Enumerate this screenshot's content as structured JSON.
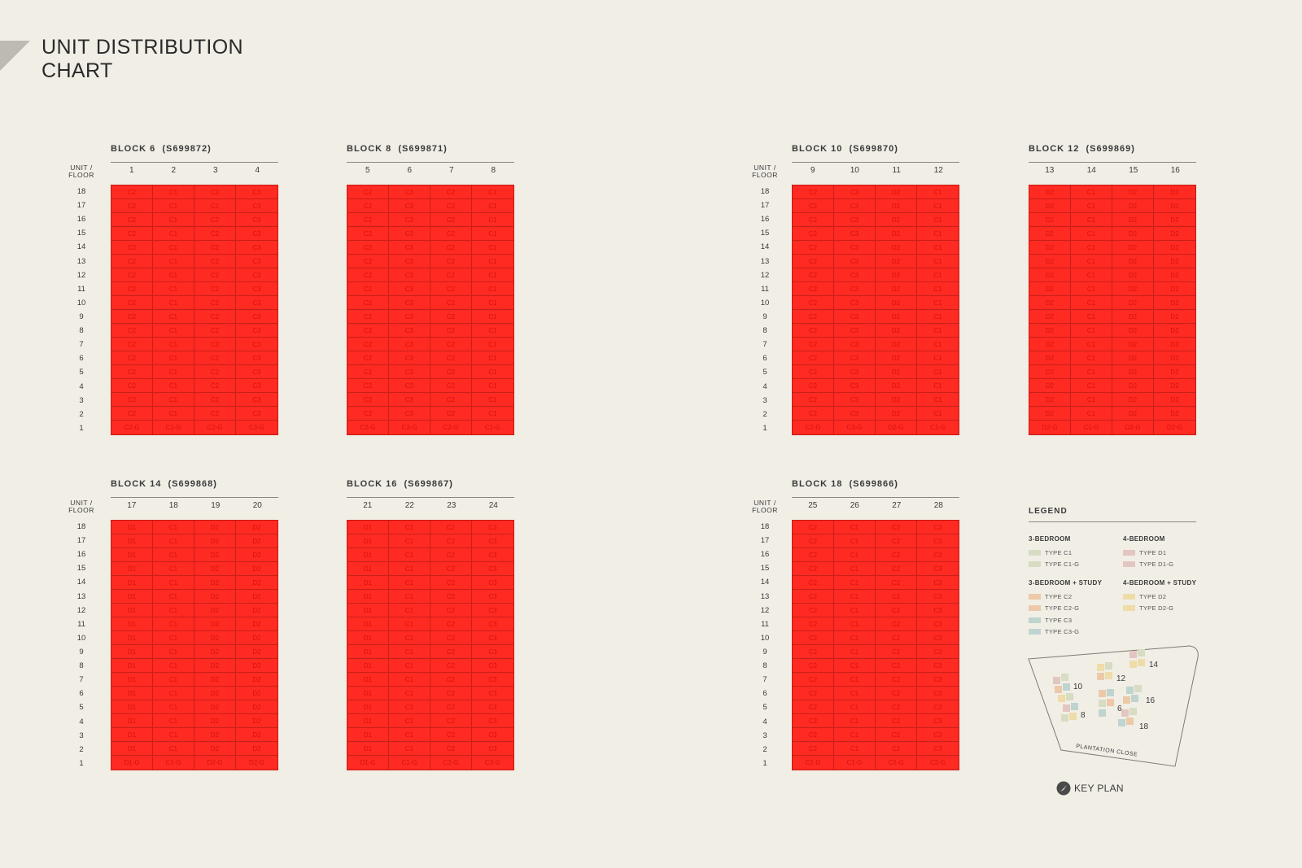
{
  "title": "UNIT DISTRIBUTION\nCHART",
  "floor_label": "UNIT /\nFLOOR",
  "floors": [
    "18",
    "17",
    "16",
    "15",
    "14",
    "13",
    "12",
    "11",
    "10",
    "9",
    "8",
    "7",
    "6",
    "5",
    "4",
    "3",
    "2",
    "1"
  ],
  "blocks": [
    {
      "title": "BLOCK 6  (S699872)",
      "units": [
        "1",
        "2",
        "3",
        "4"
      ],
      "types": [
        "C2",
        "C1",
        "C2",
        "C3"
      ],
      "ground": [
        "C2-G",
        "C1-G",
        "C2-G",
        "C3-G"
      ]
    },
    {
      "title": "BLOCK 8  (S699871)",
      "units": [
        "5",
        "6",
        "7",
        "8"
      ],
      "types": [
        "C2",
        "C3",
        "C2",
        "C1"
      ],
      "ground": [
        "C2-G",
        "C3-G",
        "C2-G",
        "C1-G"
      ]
    },
    {
      "title": "BLOCK 10  (S699870)",
      "units": [
        "9",
        "10",
        "11",
        "12"
      ],
      "types": [
        "C2",
        "C3",
        "D2",
        "C1"
      ],
      "ground": [
        "C2-G",
        "C3-G",
        "D2-G",
        "C1-G"
      ]
    },
    {
      "title": "BLOCK 12  (S699869)",
      "units": [
        "13",
        "14",
        "15",
        "16"
      ],
      "types": [
        "D2",
        "C1",
        "D2",
        "D2"
      ],
      "ground": [
        "D2-G",
        "C1-G",
        "D2-G",
        "D2-G"
      ]
    },
    {
      "title": "BLOCK 14  (S699868)",
      "units": [
        "17",
        "18",
        "19",
        "20"
      ],
      "types": [
        "D1",
        "C1",
        "D2",
        "D2"
      ],
      "ground": [
        "D1-G",
        "C1-G",
        "D2-G",
        "D2-G"
      ]
    },
    {
      "title": "BLOCK 16  (S699867)",
      "units": [
        "21",
        "22",
        "23",
        "24"
      ],
      "types": [
        "D1",
        "C1",
        "C2",
        "C3"
      ],
      "ground": [
        "D1-G",
        "C1-G",
        "C2-G",
        "C3-G"
      ]
    },
    {
      "title": "BLOCK 18  (S699866)",
      "units": [
        "25",
        "26",
        "27",
        "28"
      ],
      "types": [
        "C2",
        "C1",
        "C2",
        "C3"
      ],
      "ground": [
        "C2-G",
        "C1-G",
        "C2-G",
        "C3-G"
      ]
    }
  ],
  "legend": {
    "title": "LEGEND",
    "groups": [
      {
        "title": "3-BEDROOM",
        "items": [
          {
            "label": "TYPE C1",
            "color": "#d7dcc2"
          },
          {
            "label": "TYPE C1-G",
            "color": "#d7dcc2"
          }
        ]
      },
      {
        "title": "3-BEDROOM + STUDY",
        "items": [
          {
            "label": "TYPE C2",
            "color": "#ecc9a9"
          },
          {
            "label": "TYPE C2-G",
            "color": "#ecc9a9"
          },
          {
            "label": "TYPE C3",
            "color": "#bfd4cf"
          },
          {
            "label": "TYPE C3-G",
            "color": "#bfd4cf"
          }
        ]
      },
      {
        "title": "4-BEDROOM",
        "items": [
          {
            "label": "TYPE D1",
            "color": "#e2c6c2"
          },
          {
            "label": "TYPE D1-G",
            "color": "#e2c6c2"
          }
        ]
      },
      {
        "title": "4-BEDROOM + STUDY",
        "items": [
          {
            "label": "TYPE D2",
            "color": "#eedca9"
          },
          {
            "label": "TYPE D2-G",
            "color": "#eedca9"
          }
        ]
      }
    ]
  },
  "key_plan": {
    "label": "KEY PLAN",
    "road": "PLANTATION CLOSE",
    "block_numbers": [
      "10",
      "12",
      "14",
      "8",
      "6",
      "16",
      "18"
    ]
  }
}
